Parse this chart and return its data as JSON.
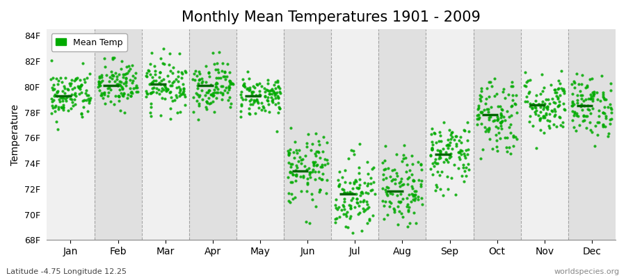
{
  "title": "Monthly Mean Temperatures 1901 - 2009",
  "ylabel": "Temperature",
  "xlabel_months": [
    "Jan",
    "Feb",
    "Mar",
    "Apr",
    "May",
    "Jun",
    "Jul",
    "Aug",
    "Sep",
    "Oct",
    "Nov",
    "Dec"
  ],
  "bottom_left_text": "Latitude -4.75 Longitude 12.25",
  "bottom_right_text": "worldspecies.org",
  "yticks": [
    68,
    70,
    72,
    74,
    76,
    78,
    80,
    82,
    84
  ],
  "ytick_labels": [
    "68F",
    "70F",
    "72F",
    "74F",
    "76F",
    "78F",
    "80F",
    "82F",
    "84F"
  ],
  "ylim": [
    68,
    84.5
  ],
  "bg_light": "#f0f0f0",
  "bg_dark": "#e0e0e0",
  "dot_color": "#00aa00",
  "mean_line_color": "#006600",
  "mean_temps_F": [
    79.3,
    80.1,
    80.2,
    80.1,
    79.3,
    73.4,
    71.6,
    71.8,
    74.7,
    77.8,
    78.6,
    78.5
  ],
  "spread_F": [
    1.0,
    1.0,
    1.0,
    1.0,
    0.8,
    1.4,
    1.6,
    1.4,
    1.4,
    1.6,
    1.2,
    1.2
  ],
  "n_years": 109,
  "title_fontsize": 15,
  "legend_label": "Mean Temp",
  "dot_marker": "o",
  "dot_size": 3,
  "dashed_line_color": "#888888",
  "figure_bg": "#ffffff"
}
